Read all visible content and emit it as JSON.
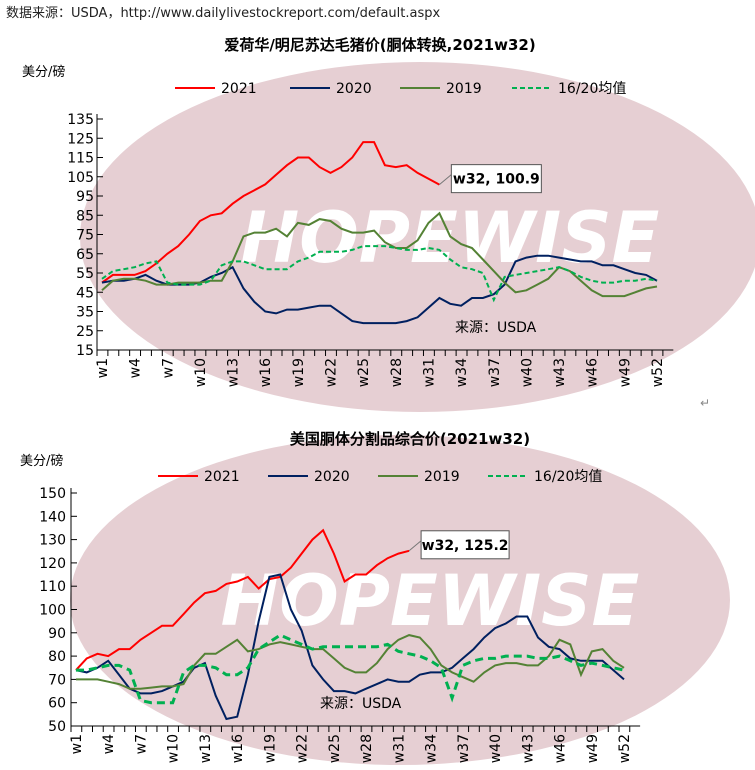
{
  "source_line": "数据来源：USDA，http://www.dailylivestockreport.com/default.aspx",
  "watermark": "HOPEWISE",
  "colors": {
    "2021": "#ff0000",
    "2020": "#002060",
    "2019": "#548235",
    "avg": "#00b050"
  },
  "chart_data": [
    {
      "type": "line",
      "title": "爱荷华/明尼苏达毛猪价(胴体转换,2021w32)",
      "ylabel": "美分/磅",
      "ylim": [
        15,
        135
      ],
      "yticks": [
        15,
        25,
        35,
        45,
        55,
        65,
        75,
        85,
        95,
        105,
        115,
        125,
        135
      ],
      "xticks": [
        "w1",
        "w4",
        "w7",
        "w10",
        "w13",
        "w16",
        "w19",
        "w22",
        "w25",
        "w28",
        "w31",
        "w34",
        "w37",
        "w40",
        "w43",
        "w46",
        "w49",
        "w52"
      ],
      "legend_position": "top",
      "annotation": "w32, 100.9",
      "source_note": "来源：USDA",
      "series": [
        {
          "name": "2021",
          "style": "solid",
          "values": [
            50,
            54,
            54,
            54,
            56,
            60,
            65,
            69,
            75,
            82,
            85,
            86,
            91,
            95,
            98,
            101,
            106,
            111,
            115,
            115,
            110,
            107,
            110,
            115,
            123,
            123,
            111,
            110,
            111,
            107,
            104,
            100.9
          ]
        },
        {
          "name": "2020",
          "style": "solid",
          "values": [
            50,
            51,
            51,
            52,
            54,
            51,
            49,
            49,
            49,
            50,
            53,
            55,
            58,
            47,
            40,
            35,
            34,
            36,
            36,
            37,
            38,
            38,
            34,
            30,
            29,
            29,
            29,
            29,
            30,
            32,
            37,
            42,
            39,
            38,
            42,
            42,
            44,
            49,
            61,
            63,
            64,
            64,
            63,
            62,
            61,
            61,
            59,
            59,
            57,
            55,
            54,
            51
          ]
        },
        {
          "name": "2019",
          "style": "solid",
          "values": [
            46,
            51,
            52,
            52,
            51,
            49,
            49,
            50,
            50,
            50,
            51,
            51,
            61,
            74,
            76,
            76,
            78,
            74,
            81,
            80,
            83,
            82,
            78,
            76,
            76,
            77,
            71,
            68,
            68,
            72,
            81,
            86,
            74,
            70,
            68,
            62,
            56,
            50,
            45,
            46,
            49,
            52,
            58,
            56,
            51,
            46,
            43,
            43,
            43,
            45,
            47,
            48
          ]
        },
        {
          "name": "16/20均值",
          "style": "dashed",
          "values": [
            52,
            56,
            57,
            58,
            60,
            61,
            50,
            49,
            49,
            49,
            51,
            59,
            61,
            61,
            59,
            57,
            57,
            57,
            61,
            63,
            66,
            66,
            66,
            67,
            69,
            69,
            69,
            68,
            67,
            67,
            68,
            67,
            62,
            58,
            57,
            55,
            41,
            53,
            54,
            55,
            56,
            57,
            58,
            56,
            53,
            51,
            50,
            50,
            51,
            51,
            52,
            51
          ]
        }
      ]
    },
    {
      "type": "line",
      "title": "美国胴体分割品综合价(2021w32)",
      "ylabel": "美分/磅",
      "ylim": [
        50,
        150
      ],
      "yticks": [
        50,
        60,
        70,
        80,
        90,
        100,
        110,
        120,
        130,
        140,
        150
      ],
      "xticks": [
        "w1",
        "w4",
        "w7",
        "w10",
        "w13",
        "w16",
        "w19",
        "w22",
        "w25",
        "w28",
        "w31",
        "w34",
        "w37",
        "w40",
        "w43",
        "w46",
        "w49",
        "w52"
      ],
      "legend_position": "top",
      "annotation": "w32, 125.2",
      "source_note": "来源：USDA",
      "series": [
        {
          "name": "2021",
          "style": "solid",
          "values": [
            74,
            79,
            81,
            80,
            83,
            83,
            87,
            90,
            93,
            93,
            98,
            103,
            107,
            108,
            111,
            112,
            114,
            109,
            113,
            114,
            118,
            124,
            130,
            134,
            124,
            112,
            115,
            115,
            119,
            122,
            124,
            125.2
          ]
        },
        {
          "name": "2020",
          "style": "solid",
          "values": [
            74,
            73,
            75,
            78,
            72,
            66,
            64,
            64,
            65,
            67,
            69,
            75,
            77,
            63,
            53,
            54,
            72,
            95,
            114,
            115,
            100,
            91,
            76,
            70,
            65,
            65,
            64,
            66,
            68,
            70,
            69,
            69,
            72,
            73,
            73,
            75,
            79,
            83,
            88,
            92,
            94,
            97,
            97,
            88,
            84,
            83,
            79,
            78,
            78,
            78,
            74,
            70
          ]
        },
        {
          "name": "2019",
          "style": "solid",
          "values": [
            70,
            70,
            70,
            69,
            68,
            66,
            66,
            66.5,
            67,
            67,
            68,
            76,
            81,
            81,
            84,
            87,
            82,
            83,
            85,
            86,
            85,
            84,
            83,
            83,
            79,
            75,
            73,
            73,
            77,
            83,
            87,
            89,
            88,
            83,
            76,
            73,
            71,
            69,
            73,
            76,
            77,
            77,
            76,
            76,
            80,
            87,
            85,
            72,
            82,
            83,
            78,
            75
          ]
        },
        {
          "name": "16/20均值",
          "style": "dashed",
          "values": [
            74,
            74,
            75,
            76,
            76,
            74,
            61,
            60,
            60,
            60,
            73,
            76,
            76,
            75,
            72,
            72,
            75,
            83,
            86,
            89,
            87,
            85,
            83,
            84,
            84,
            84,
            84,
            84,
            84,
            85,
            82,
            81,
            80,
            78,
            75,
            62,
            76,
            78,
            79,
            79,
            80,
            80,
            80,
            79,
            79,
            80,
            78,
            76,
            77,
            76,
            75,
            74
          ]
        }
      ]
    }
  ]
}
